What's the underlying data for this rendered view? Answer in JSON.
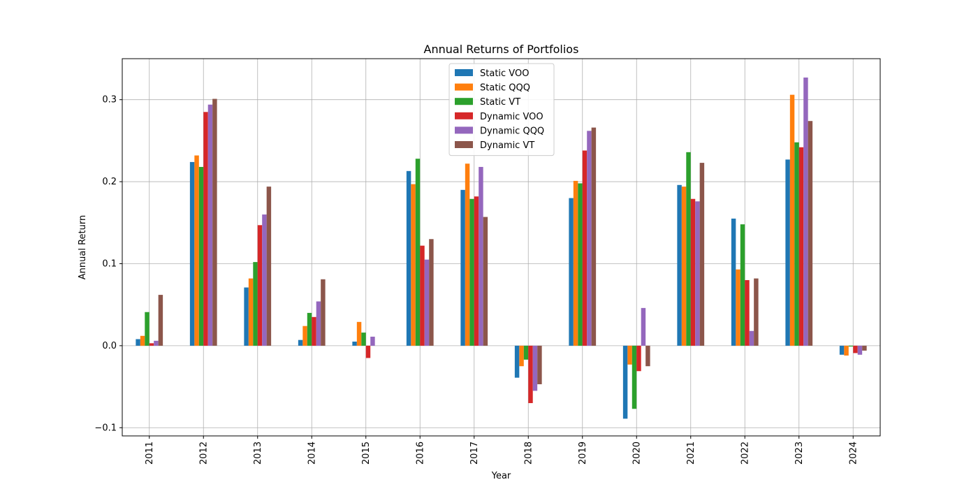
{
  "chart_data": {
    "type": "bar",
    "title": "Annual Returns of Portfolios",
    "xlabel": "Year",
    "ylabel": "Annual Return",
    "ylim": [
      -0.11,
      0.35
    ],
    "yticks": [
      -0.1,
      0.0,
      0.1,
      0.2,
      0.3
    ],
    "ytick_labels": [
      "−0.1",
      "0.0",
      "0.1",
      "0.2",
      "0.3"
    ],
    "grid": true,
    "legend_position": "top-center",
    "categories": [
      "2011",
      "2012",
      "2013",
      "2014",
      "2015",
      "2016",
      "2017",
      "2018",
      "2019",
      "2020",
      "2021",
      "2022",
      "2023",
      "2024"
    ],
    "series": [
      {
        "name": "Static VOO",
        "color": "#1f77b4",
        "values": [
          0.008,
          0.224,
          0.071,
          0.007,
          0.005,
          0.213,
          0.19,
          -0.039,
          0.18,
          -0.089,
          0.196,
          0.155,
          0.227,
          -0.011
        ]
      },
      {
        "name": "Static QQQ",
        "color": "#ff7f0e",
        "values": [
          0.012,
          0.232,
          0.082,
          0.024,
          0.029,
          0.197,
          0.222,
          -0.025,
          0.201,
          -0.023,
          0.194,
          0.093,
          0.306,
          -0.012
        ]
      },
      {
        "name": "Static VT",
        "color": "#2ca02c",
        "values": [
          0.041,
          0.218,
          0.102,
          0.04,
          0.016,
          0.228,
          0.179,
          -0.017,
          0.198,
          -0.077,
          0.236,
          0.148,
          0.248,
          -0.001
        ]
      },
      {
        "name": "Dynamic VOO",
        "color": "#d62728",
        "values": [
          0.003,
          0.285,
          0.147,
          0.035,
          -0.015,
          0.122,
          0.182,
          -0.07,
          0.238,
          -0.031,
          0.179,
          0.08,
          0.242,
          -0.009
        ]
      },
      {
        "name": "Dynamic QQQ",
        "color": "#9467bd",
        "values": [
          0.006,
          0.294,
          0.16,
          0.054,
          0.011,
          0.105,
          0.218,
          -0.055,
          0.262,
          0.046,
          0.176,
          0.018,
          0.327,
          -0.011
        ]
      },
      {
        "name": "Dynamic VT",
        "color": "#8c564b",
        "values": [
          0.062,
          0.301,
          0.194,
          0.081,
          0.0,
          0.13,
          0.157,
          -0.047,
          0.266,
          -0.025,
          0.223,
          0.082,
          0.274,
          -0.006
        ]
      }
    ]
  }
}
